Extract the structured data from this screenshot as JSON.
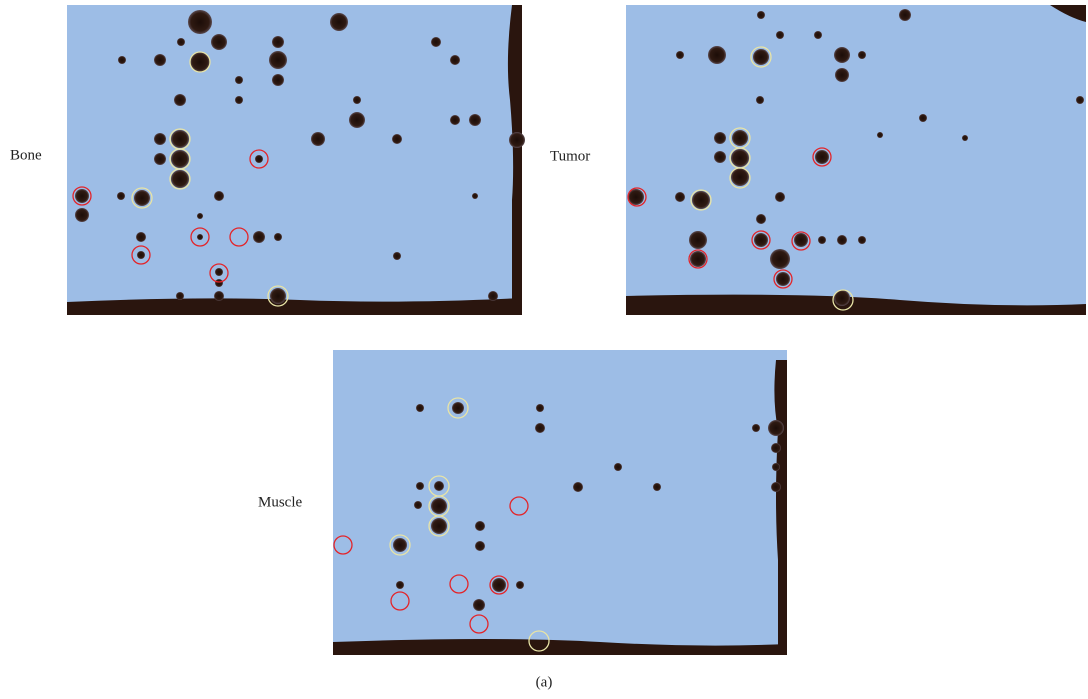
{
  "panels": [
    {
      "label": "Bone"
    },
    {
      "label": "Tumor"
    },
    {
      "label": "Muscle"
    }
  ],
  "caption": "(a)"
}
